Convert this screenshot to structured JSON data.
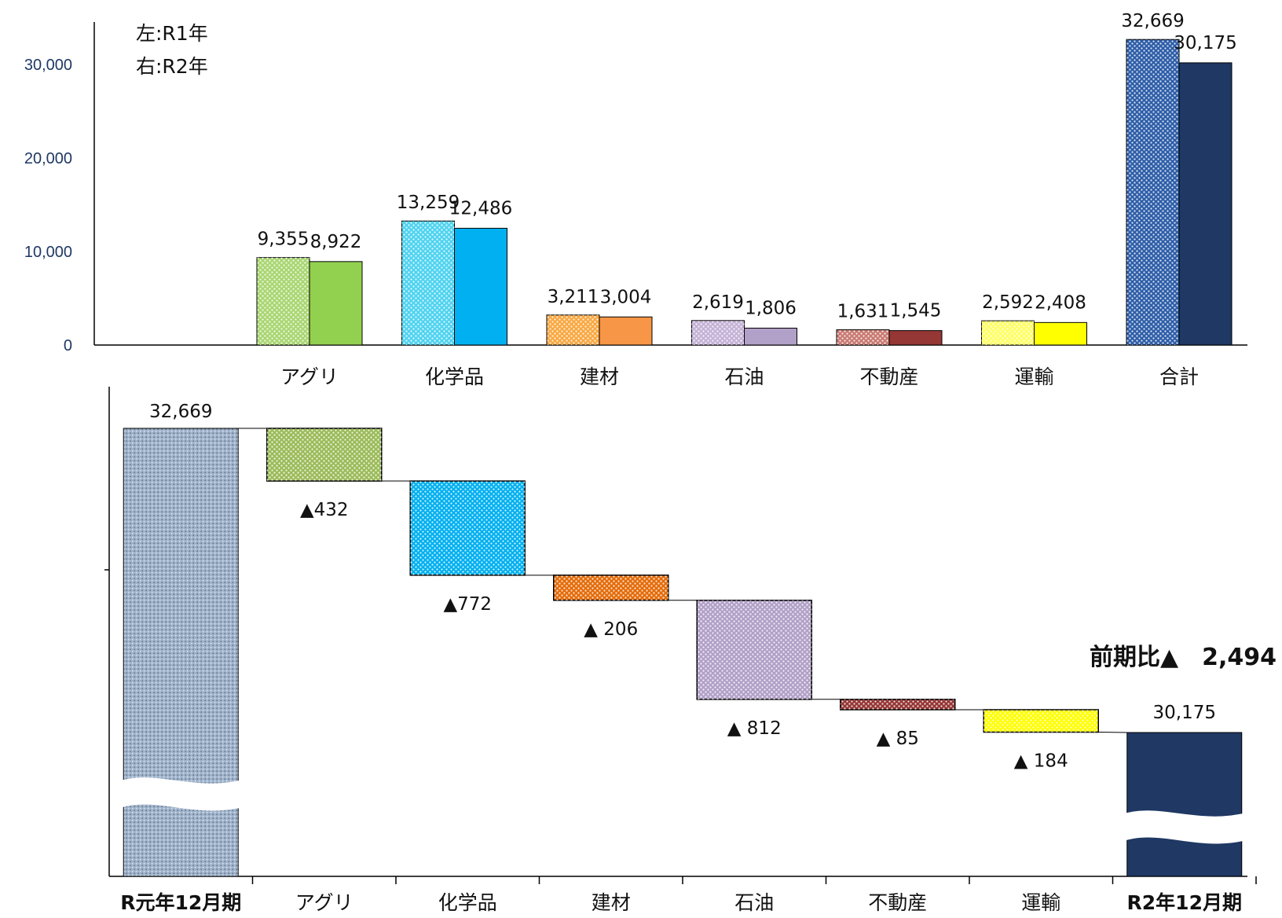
{
  "chart_data": [
    {
      "type": "bar",
      "legend": [
        "左:R1年",
        "右:R2年"
      ],
      "legend_position": "top-left",
      "categories": [
        "アグリ",
        "化学品",
        "建材",
        "石油",
        "不動産",
        "運輸",
        "合計"
      ],
      "series": [
        {
          "name": "左:R1年",
          "values": [
            9355,
            13259,
            3211,
            2619,
            1631,
            2592,
            32669
          ],
          "labels": [
            "9,355",
            "13,259",
            "3,211",
            "2,619",
            "1,631",
            "2,592",
            "32,669"
          ]
        },
        {
          "name": "右:R2年",
          "values": [
            8922,
            12486,
            3004,
            1806,
            1545,
            2408,
            30175
          ],
          "labels": [
            "8,922",
            "12,486",
            "3,004",
            "1,806",
            "1,545",
            "2,408",
            "30,175"
          ]
        }
      ],
      "ylim": [
        0,
        30000
      ],
      "yticks": [
        0,
        10000,
        20000,
        30000
      ],
      "ytick_labels": [
        "0",
        "10,000",
        "20,000",
        "30,000"
      ],
      "colors_r1": [
        "#a9d672",
        "#4fd3f0",
        "#f9a842",
        "#c5b2d6",
        "#c97a72",
        "#ffff66",
        "#2e5ea8"
      ],
      "colors_r2": [
        "#92d050",
        "#00b0f0",
        "#f79646",
        "#b1a0c7",
        "#953735",
        "#ffff00",
        "#1f3864"
      ]
    },
    {
      "type": "waterfall",
      "categories": [
        "R元年12月期",
        "アグリ",
        "化学品",
        "建材",
        "石油",
        "不動産",
        "運輸",
        "R2年12月期"
      ],
      "start": {
        "value": 32669,
        "label": "32,669"
      },
      "end": {
        "value": 30175,
        "label": "30,175"
      },
      "changes": [
        -432,
        -772,
        -206,
        -812,
        -85,
        -184
      ],
      "change_labels": [
        "▲432",
        "▲772",
        "▲ 206",
        "▲ 812",
        "▲ 85",
        "▲ 184"
      ],
      "annotation": "前期比▲　2,494",
      "colors": [
        "#9bbb59",
        "#00b0f0",
        "#e46c0a",
        "#b1a0c7",
        "#953735",
        "#ffff00"
      ],
      "start_color": "#9fb3cc",
      "end_color": "#1f3864",
      "axis_break": true
    }
  ]
}
